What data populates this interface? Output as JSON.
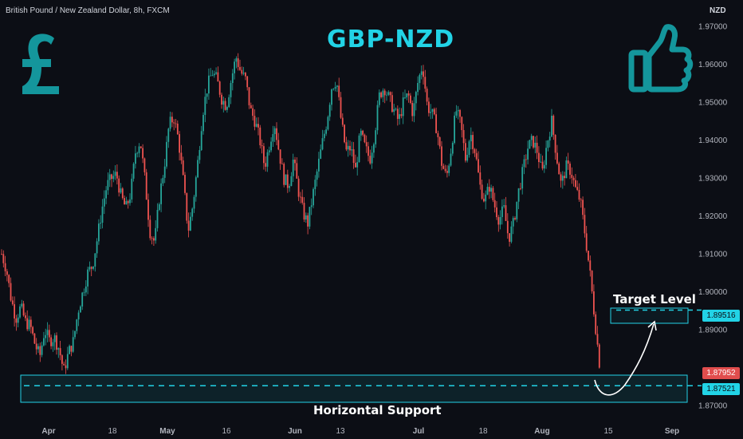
{
  "header": {
    "symbol_desc": "British Pound / New Zealand Dollar, 8h, FXCM",
    "currency": "NZD",
    "title": "GBP-NZD"
  },
  "annotations": {
    "target_label": "Target Level",
    "support_label": "Horizontal Support"
  },
  "icons": {
    "left": "pound-sign-icon",
    "right": "thumbs-up-icon"
  },
  "colors": {
    "background": "#0c0e15",
    "up": "#26a69a",
    "down": "#ef5350",
    "accent": "#22d3e6",
    "icon": "#14969c",
    "price_badge": "#e14d4d"
  },
  "badges": {
    "current_price": "1.87952",
    "target_price": "1.89516",
    "support_price": "1.87521"
  },
  "chart_data": {
    "type": "candlestick",
    "title": "GBP-NZD",
    "timeframe": "8h",
    "y_axis": {
      "position": "right",
      "ylim": [
        1.866,
        1.977
      ],
      "ticks": [
        "1.97000",
        "1.96000",
        "1.95000",
        "1.94000",
        "1.93000",
        "1.92000",
        "1.91000",
        "1.90000",
        "1.89000",
        "1.87000"
      ]
    },
    "x_axis": {
      "ticks": [
        "Apr",
        "18",
        "May",
        "16",
        "Jun",
        "13",
        "Jul",
        "18",
        "Aug",
        "15",
        "Sep"
      ],
      "bold_ticks": [
        "Apr",
        "May",
        "Jun",
        "Jul",
        "Aug",
        "Sep"
      ]
    },
    "levels": [
      {
        "name": "Target Level",
        "value": 1.89516
      },
      {
        "name": "Horizontal Support",
        "value": 1.87521
      }
    ],
    "close_path": [
      [
        0,
        1.91
      ],
      [
        6,
        1.906
      ],
      [
        12,
        1.898
      ],
      [
        18,
        1.893
      ],
      [
        24,
        1.896
      ],
      [
        30,
        1.892
      ],
      [
        36,
        1.891
      ],
      [
        42,
        1.886
      ],
      [
        48,
        1.883
      ],
      [
        54,
        1.89
      ],
      [
        60,
        1.887
      ],
      [
        66,
        1.888
      ],
      [
        72,
        1.885
      ],
      [
        78,
        1.879
      ],
      [
        84,
        1.884
      ],
      [
        90,
        1.887
      ],
      [
        96,
        1.895
      ],
      [
        102,
        1.9
      ],
      [
        108,
        1.905
      ],
      [
        114,
        1.907
      ],
      [
        120,
        1.914
      ],
      [
        126,
        1.922
      ],
      [
        132,
        1.928
      ],
      [
        138,
        1.93
      ],
      [
        144,
        1.931
      ],
      [
        150,
        1.925
      ],
      [
        156,
        1.922
      ],
      [
        162,
        1.926
      ],
      [
        168,
        1.937
      ],
      [
        174,
        1.94
      ],
      [
        180,
        1.929
      ],
      [
        186,
        1.916
      ],
      [
        192,
        1.913
      ],
      [
        198,
        1.925
      ],
      [
        204,
        1.933
      ],
      [
        210,
        1.944
      ],
      [
        216,
        1.946
      ],
      [
        222,
        1.94
      ],
      [
        228,
        1.929
      ],
      [
        234,
        1.916
      ],
      [
        240,
        1.923
      ],
      [
        246,
        1.934
      ],
      [
        252,
        1.947
      ],
      [
        258,
        1.954
      ],
      [
        264,
        1.958
      ],
      [
        270,
        1.956
      ],
      [
        276,
        1.951
      ],
      [
        282,
        1.949
      ],
      [
        288,
        1.956
      ],
      [
        294,
        1.962
      ],
      [
        300,
        1.958
      ],
      [
        306,
        1.956
      ],
      [
        312,
        1.948
      ],
      [
        318,
        1.945
      ],
      [
        324,
        1.94
      ],
      [
        330,
        1.933
      ],
      [
        336,
        1.939
      ],
      [
        342,
        1.945
      ],
      [
        348,
        1.937
      ],
      [
        354,
        1.93
      ],
      [
        360,
        1.928
      ],
      [
        366,
        1.935
      ],
      [
        372,
        1.927
      ],
      [
        378,
        1.921
      ],
      [
        384,
        1.918
      ],
      [
        390,
        1.925
      ],
      [
        396,
        1.932
      ],
      [
        402,
        1.939
      ],
      [
        408,
        1.945
      ],
      [
        414,
        1.954
      ],
      [
        420,
        1.956
      ],
      [
        426,
        1.945
      ],
      [
        432,
        1.937
      ],
      [
        438,
        1.938
      ],
      [
        444,
        1.932
      ],
      [
        450,
        1.942
      ],
      [
        456,
        1.938
      ],
      [
        462,
        1.935
      ],
      [
        468,
        1.942
      ],
      [
        474,
        1.952
      ],
      [
        480,
        1.954
      ],
      [
        486,
        1.951
      ],
      [
        492,
        1.948
      ],
      [
        498,
        1.945
      ],
      [
        504,
        1.95
      ],
      [
        510,
        1.952
      ],
      [
        516,
        1.947
      ],
      [
        522,
        1.955
      ],
      [
        528,
        1.96
      ],
      [
        534,
        1.949
      ],
      [
        540,
        1.947
      ],
      [
        546,
        1.943
      ],
      [
        552,
        1.934
      ],
      [
        558,
        1.93
      ],
      [
        564,
        1.938
      ],
      [
        570,
        1.948
      ],
      [
        576,
        1.944
      ],
      [
        582,
        1.935
      ],
      [
        588,
        1.942
      ],
      [
        594,
        1.937
      ],
      [
        600,
        1.928
      ],
      [
        606,
        1.924
      ],
      [
        612,
        1.928
      ],
      [
        618,
        1.923
      ],
      [
        624,
        1.919
      ],
      [
        630,
        1.922
      ],
      [
        636,
        1.914
      ],
      [
        642,
        1.918
      ],
      [
        648,
        1.926
      ],
      [
        654,
        1.932
      ],
      [
        660,
        1.938
      ],
      [
        666,
        1.94
      ],
      [
        672,
        1.937
      ],
      [
        678,
        1.931
      ],
      [
        684,
        1.939
      ],
      [
        690,
        1.945
      ],
      [
        696,
        1.936
      ],
      [
        702,
        1.928
      ],
      [
        708,
        1.933
      ],
      [
        714,
        1.932
      ],
      [
        720,
        1.927
      ],
      [
        726,
        1.924
      ],
      [
        732,
        1.915
      ],
      [
        738,
        1.905
      ],
      [
        744,
        1.893
      ],
      [
        750,
        1.881
      ],
      [
        753,
        1.87952
      ]
    ]
  }
}
